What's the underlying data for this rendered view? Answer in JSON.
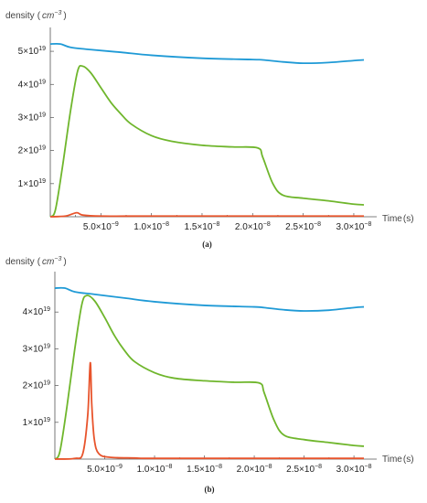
{
  "chart_data": [
    {
      "type": "line",
      "panel_label": "(a)",
      "ylabel": "density",
      "ylabel_unit_base": "cm",
      "ylabel_unit_exp": "−3",
      "xlabel": "Time",
      "xlabel_unit": "(s)",
      "xlim": [
        0,
        3.1e-08
      ],
      "ylim": [
        0,
        5.5e+19
      ],
      "x_ticks": [
        {
          "value": 5e-09,
          "mantissa": "5.0",
          "exp": "−9"
        },
        {
          "value": 1e-08,
          "mantissa": "1.0",
          "exp": "−8"
        },
        {
          "value": 1.5e-08,
          "mantissa": "1.5",
          "exp": "−8"
        },
        {
          "value": 2e-08,
          "mantissa": "2.0",
          "exp": "−8"
        },
        {
          "value": 2.5e-08,
          "mantissa": "2.5",
          "exp": "−8"
        },
        {
          "value": 3e-08,
          "mantissa": "3.0",
          "exp": "−8"
        }
      ],
      "y_ticks": [
        {
          "value": 1e+19,
          "mantissa": "1",
          "exp": "19"
        },
        {
          "value": 2e+19,
          "mantissa": "2",
          "exp": "19"
        },
        {
          "value": 3e+19,
          "mantissa": "3",
          "exp": "19"
        },
        {
          "value": 4e+19,
          "mantissa": "4",
          "exp": "19"
        },
        {
          "value": 5e+19,
          "mantissa": "5",
          "exp": "19"
        }
      ],
      "series": [
        {
          "color": "#1f9ad6",
          "points": [
            [
              0,
              5.22e+19
            ],
            [
              1e-09,
              5.22e+19
            ],
            [
              2e-09,
              5.12e+19
            ],
            [
              4e-09,
              5.05e+19
            ],
            [
              7e-09,
              4.97e+19
            ],
            [
              1e-08,
              4.88e+19
            ],
            [
              1.5e-08,
              4.79e+19
            ],
            [
              2e-08,
              4.75e+19
            ],
            [
              2.1e-08,
              4.74e+19
            ],
            [
              2.3e-08,
              4.68e+19
            ],
            [
              2.5e-08,
              4.64e+19
            ],
            [
              2.75e-08,
              4.66e+19
            ],
            [
              3e-08,
              4.72e+19
            ],
            [
              3.1e-08,
              4.74e+19
            ]
          ]
        },
        {
          "color": "#6fb62c",
          "points": [
            [
              0,
              0
            ],
            [
              5e-10,
              2e+18
            ],
            [
              1.2e-09,
              1.5e+19
            ],
            [
              2e-09,
              3.2e+19
            ],
            [
              2.7e-09,
              4.4e+19
            ],
            [
              3.2e-09,
              4.55e+19
            ],
            [
              4e-09,
              4.35e+19
            ],
            [
              5e-09,
              3.9e+19
            ],
            [
              6e-09,
              3.45e+19
            ],
            [
              7e-09,
              3.1e+19
            ],
            [
              8e-09,
              2.8e+19
            ],
            [
              1e-08,
              2.45e+19
            ],
            [
              1.2e-08,
              2.28e+19
            ],
            [
              1.5e-08,
              2.16e+19
            ],
            [
              1.8e-08,
              2.11e+19
            ],
            [
              2.05e-08,
              2.08e+19
            ],
            [
              2.1e-08,
              1.8e+19
            ],
            [
              2.2e-08,
              1e+19
            ],
            [
              2.3e-08,
              6.5e+18
            ],
            [
              2.5e-08,
              5.6e+18
            ],
            [
              2.75e-08,
              4.8e+18
            ],
            [
              3e-08,
              3.8e+18
            ],
            [
              3.1e-08,
              3.6e+18
            ]
          ]
        },
        {
          "color": "#e8542c",
          "points": [
            [
              0,
              0.0
            ],
            [
              1.5e-09,
              2e+17
            ],
            [
              2.6e-09,
              1.2e+18
            ],
            [
              3.2e-09,
              5e+17
            ],
            [
              5e-09,
              2e+17
            ],
            [
              1e-08,
              2e+17
            ],
            [
              2e-08,
              2e+17
            ],
            [
              3.1e-08,
              2e+17
            ]
          ]
        }
      ]
    },
    {
      "type": "line",
      "panel_label": "(b)",
      "ylabel": "density",
      "ylabel_unit_base": "cm",
      "ylabel_unit_exp": "−3",
      "xlabel": "Time",
      "xlabel_unit": "(s)",
      "xlim": [
        0,
        3.1e-08
      ],
      "ylim": [
        0,
        4.9e+19
      ],
      "x_ticks": [
        {
          "value": 5e-09,
          "mantissa": "5.0",
          "exp": "−9"
        },
        {
          "value": 1e-08,
          "mantissa": "1.0",
          "exp": "−8"
        },
        {
          "value": 1.5e-08,
          "mantissa": "1.5",
          "exp": "−8"
        },
        {
          "value": 2e-08,
          "mantissa": "2.0",
          "exp": "−8"
        },
        {
          "value": 2.5e-08,
          "mantissa": "2.5",
          "exp": "−8"
        },
        {
          "value": 3e-08,
          "mantissa": "3.0",
          "exp": "−8"
        }
      ],
      "y_ticks": [
        {
          "value": 1e+19,
          "mantissa": "1",
          "exp": "19"
        },
        {
          "value": 2e+19,
          "mantissa": "2",
          "exp": "19"
        },
        {
          "value": 3e+19,
          "mantissa": "3",
          "exp": "19"
        },
        {
          "value": 4e+19,
          "mantissa": "4",
          "exp": "19"
        }
      ],
      "series": [
        {
          "color": "#1f9ad6",
          "points": [
            [
              0,
              4.65e+19
            ],
            [
              1e-09,
              4.65e+19
            ],
            [
              2e-09,
              4.55e+19
            ],
            [
              4e-09,
              4.48e+19
            ],
            [
              7e-09,
              4.38e+19
            ],
            [
              1e-08,
              4.28e+19
            ],
            [
              1.5e-08,
              4.18e+19
            ],
            [
              2e-08,
              4.14e+19
            ],
            [
              2.1e-08,
              4.12e+19
            ],
            [
              2.3e-08,
              4.06e+19
            ],
            [
              2.5e-08,
              4.03e+19
            ],
            [
              2.75e-08,
              4.05e+19
            ],
            [
              3e-08,
              4.12e+19
            ],
            [
              3.1e-08,
              4.14e+19
            ]
          ]
        },
        {
          "color": "#6fb62c",
          "points": [
            [
              0,
              0
            ],
            [
              5e-10,
              2e+18
            ],
            [
              1.2e-09,
              1.4e+19
            ],
            [
              2e-09,
              3e+19
            ],
            [
              2.7e-09,
              4.2e+19
            ],
            [
              3.2e-09,
              4.45e+19
            ],
            [
              4e-09,
              4.3e+19
            ],
            [
              5e-09,
              3.85e+19
            ],
            [
              6e-09,
              3.35e+19
            ],
            [
              7e-09,
              2.95e+19
            ],
            [
              8e-09,
              2.65e+19
            ],
            [
              1e-08,
              2.35e+19
            ],
            [
              1.2e-08,
              2.2e+19
            ],
            [
              1.5e-08,
              2.13e+19
            ],
            [
              1.8e-08,
              2.09e+19
            ],
            [
              2.05e-08,
              2.07e+19
            ],
            [
              2.1e-08,
              1.8e+19
            ],
            [
              2.2e-08,
              1.05e+19
            ],
            [
              2.3e-08,
              6.5e+18
            ],
            [
              2.5e-08,
              5.3e+18
            ],
            [
              2.75e-08,
              4.5e+18
            ],
            [
              3e-08,
              3.7e+18
            ],
            [
              3.1e-08,
              3.5e+18
            ]
          ]
        },
        {
          "color": "#e8542c",
          "points": [
            [
              0,
              0.0
            ],
            [
              2e-09,
              2e+17
            ],
            [
              2.8e-09,
              1.5e+18
            ],
            [
              3.3e-09,
              1.2e+19
            ],
            [
              3.55e-09,
              2.62e+19
            ],
            [
              3.7e-09,
              1.5e+19
            ],
            [
              3.95e-09,
              5.5e+18
            ],
            [
              4.4e-09,
              1.5e+18
            ],
            [
              5.5e-09,
              5e+17
            ],
            [
              8e-09,
              3e+17
            ],
            [
              1e-08,
              2e+17
            ],
            [
              2e-08,
              2e+17
            ],
            [
              3.1e-08,
              2e+17
            ]
          ]
        }
      ]
    }
  ]
}
